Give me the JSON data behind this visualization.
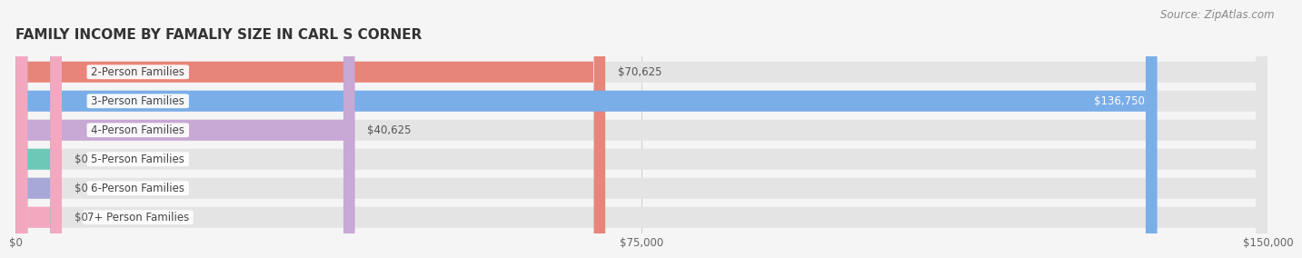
{
  "title": "FAMILY INCOME BY FAMALIY SIZE IN CARL S CORNER",
  "source": "Source: ZipAtlas.com",
  "categories": [
    "2-Person Families",
    "3-Person Families",
    "4-Person Families",
    "5-Person Families",
    "6-Person Families",
    "7+ Person Families"
  ],
  "values": [
    70625,
    136750,
    40625,
    0,
    0,
    0
  ],
  "bar_colors": [
    "#E8857A",
    "#7AAEE8",
    "#C8A8D4",
    "#6DC8B8",
    "#A8A8D8",
    "#F4A8C0"
  ],
  "value_labels": [
    "$70,625",
    "$136,750",
    "$40,625",
    "$0",
    "$0",
    "$0"
  ],
  "value_label_color_inside": "#ffffff",
  "value_label_color_outside": "#555555",
  "xlim": [
    0,
    150000
  ],
  "xticks": [
    0,
    75000,
    150000
  ],
  "xticklabels": [
    "$0",
    "$75,000",
    "$150,000"
  ],
  "bg_color": "#f5f5f5",
  "bar_bg_color": "#e4e4e4",
  "title_fontsize": 11,
  "label_fontsize": 8.5,
  "value_fontsize": 8.5,
  "source_fontsize": 8.5,
  "zero_stub_value": 5500
}
